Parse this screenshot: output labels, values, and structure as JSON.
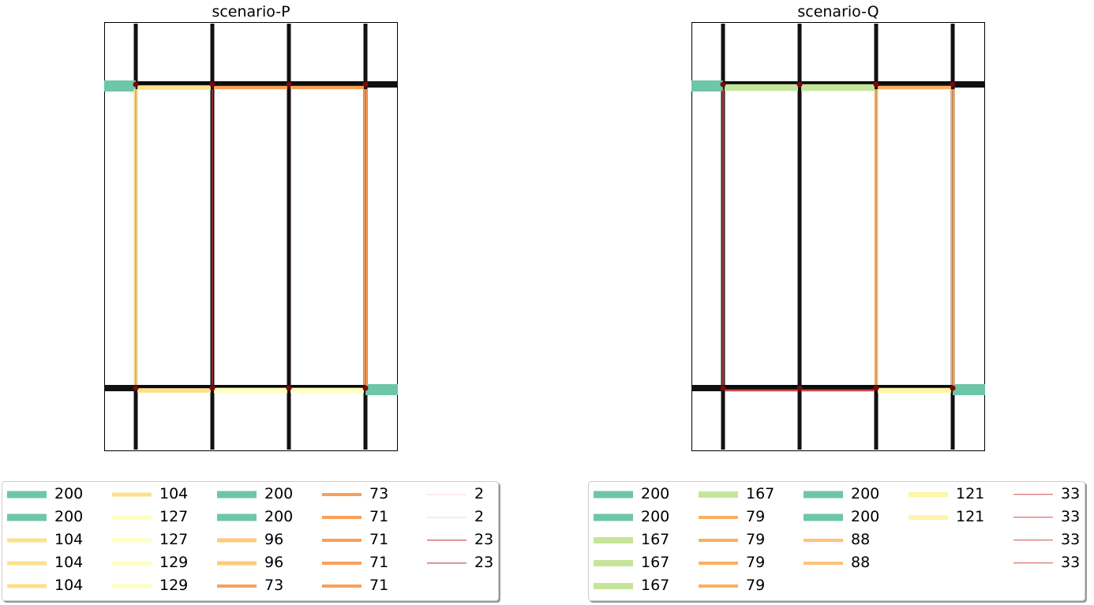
{
  "panels": [
    {
      "title": "scenario-P",
      "edges": [
        {
          "road": "top",
          "from": 0,
          "to": 1,
          "flow": 104,
          "color": "#fee08b"
        },
        {
          "road": "top",
          "from": 1,
          "to": 2,
          "flow": 73,
          "color": "#f8a05a"
        },
        {
          "road": "top",
          "from": 2,
          "to": 3,
          "flow": 73,
          "color": "#f8a05a"
        },
        {
          "road": "bottom",
          "from": 0,
          "to": 1,
          "flow": 104,
          "color": "#fee08b"
        },
        {
          "road": "bottom",
          "from": 1,
          "to": 2,
          "flow": 127,
          "color": "#ffffbf"
        },
        {
          "road": "bottom",
          "from": 2,
          "to": 3,
          "flow": 129,
          "color": "#ffffbf"
        },
        {
          "road": "vertical",
          "at": 0,
          "flow": 104,
          "color": "#fee08b"
        },
        {
          "road": "vertical",
          "at": 1,
          "flow": 23,
          "color": "#b8303a"
        },
        {
          "road": "vertical",
          "at": 2,
          "flow": 2,
          "color": "#2c0f1a"
        },
        {
          "road": "vertical",
          "at": 3,
          "flow": 71,
          "color": "#f8a05a"
        }
      ],
      "entries": [
        {
          "road": "top-left",
          "flow": 200,
          "color": "#6dc6a6"
        },
        {
          "road": "bottom-right",
          "flow": 200,
          "color": "#6dc6a6"
        }
      ],
      "legend": {
        "columns": [
          [
            {
              "label": "200",
              "color": "#6dc6a6",
              "width": 9
            },
            {
              "label": "200",
              "color": "#6dc6a6",
              "width": 9
            },
            {
              "label": "104",
              "color": "#fee08b",
              "width": 5
            },
            {
              "label": "104",
              "color": "#fee08b",
              "width": 5
            },
            {
              "label": "104",
              "color": "#fee08b",
              "width": 5
            }
          ],
          [
            {
              "label": "104",
              "color": "#fee08b",
              "width": 5
            },
            {
              "label": "127",
              "color": "#ffffbf",
              "width": 5
            },
            {
              "label": "127",
              "color": "#ffffbf",
              "width": 5
            },
            {
              "label": "129",
              "color": "#ffffbf",
              "width": 5
            },
            {
              "label": "129",
              "color": "#ffffbf",
              "width": 5
            }
          ],
          [
            {
              "label": "200",
              "color": "#6dc6a6",
              "width": 9
            },
            {
              "label": "200",
              "color": "#6dc6a6",
              "width": 9
            },
            {
              "label": "96",
              "color": "#fdcb7a",
              "width": 5
            },
            {
              "label": "96",
              "color": "#fdcb7a",
              "width": 5
            },
            {
              "label": "73",
              "color": "#f8a05a",
              "width": 4
            }
          ],
          [
            {
              "label": "73",
              "color": "#f8a05a",
              "width": 4
            },
            {
              "label": "71",
              "color": "#f8a05a",
              "width": 4
            },
            {
              "label": "71",
              "color": "#f8a05a",
              "width": 4
            },
            {
              "label": "71",
              "color": "#f8a05a",
              "width": 4
            },
            {
              "label": "71",
              "color": "#f8a05a",
              "width": 4
            }
          ],
          [
            {
              "label": "2",
              "color": "#f7d5dc",
              "width": 1
            },
            {
              "label": "2",
              "color": "#f7d5dc",
              "width": 1
            },
            {
              "label": "23",
              "color": "#b8303a",
              "width": 1.2
            },
            {
              "label": "23",
              "color": "#b8303a",
              "width": 1.2
            }
          ]
        ]
      }
    },
    {
      "title": "scenario-Q",
      "edges": [
        {
          "road": "top",
          "from": 0,
          "to": 1,
          "flow": 167,
          "color": "#c5e59a"
        },
        {
          "road": "top",
          "from": 1,
          "to": 2,
          "flow": 167,
          "color": "#c5e59a"
        },
        {
          "road": "top",
          "from": 2,
          "to": 3,
          "flow": 79,
          "color": "#fcaf5e"
        },
        {
          "road": "bottom",
          "from": 0,
          "to": 1,
          "flow": 33,
          "color": "#d24d4d"
        },
        {
          "road": "bottom",
          "from": 1,
          "to": 2,
          "flow": 33,
          "color": "#d24d4d"
        },
        {
          "road": "bottom",
          "from": 2,
          "to": 3,
          "flow": 121,
          "color": "#fef6a6"
        },
        {
          "road": "vertical",
          "at": 0,
          "flow": 33,
          "color": "#d24d4d"
        },
        {
          "road": "vertical",
          "at": 1,
          "flow": 0,
          "color": "#111111"
        },
        {
          "road": "vertical",
          "at": 2,
          "flow": 88,
          "color": "#fdc27a"
        },
        {
          "road": "vertical",
          "at": 3,
          "flow": 79,
          "color": "#fcaf5e"
        }
      ],
      "entries": [
        {
          "road": "top-left",
          "flow": 200,
          "color": "#6dc6a6"
        },
        {
          "road": "bottom-right",
          "flow": 200,
          "color": "#6dc6a6"
        }
      ],
      "legend": {
        "columns": [
          [
            {
              "label": "200",
              "color": "#6dc6a6",
              "width": 9
            },
            {
              "label": "200",
              "color": "#6dc6a6",
              "width": 9
            },
            {
              "label": "167",
              "color": "#c5e59a",
              "width": 8
            },
            {
              "label": "167",
              "color": "#c5e59a",
              "width": 8
            },
            {
              "label": "167",
              "color": "#c5e59a",
              "width": 8
            }
          ],
          [
            {
              "label": "167",
              "color": "#c5e59a",
              "width": 8
            },
            {
              "label": "79",
              "color": "#fcaf5e",
              "width": 4
            },
            {
              "label": "79",
              "color": "#fcaf5e",
              "width": 4
            },
            {
              "label": "79",
              "color": "#fcaf5e",
              "width": 4
            },
            {
              "label": "79",
              "color": "#fcaf5e",
              "width": 4
            }
          ],
          [
            {
              "label": "200",
              "color": "#6dc6a6",
              "width": 9
            },
            {
              "label": "200",
              "color": "#6dc6a6",
              "width": 9
            },
            {
              "label": "88",
              "color": "#fdc27a",
              "width": 4
            },
            {
              "label": "88",
              "color": "#fdc27a",
              "width": 4
            }
          ],
          [
            {
              "label": "121",
              "color": "#fef6a6",
              "width": 6
            },
            {
              "label": "121",
              "color": "#fef6a6",
              "width": 6
            }
          ],
          [
            {
              "label": "33",
              "color": "#d24d4d",
              "width": 1.5
            },
            {
              "label": "33",
              "color": "#d24d4d",
              "width": 1.5
            },
            {
              "label": "33",
              "color": "#d24d4d",
              "width": 1.5
            },
            {
              "label": "33",
              "color": "#d24d4d",
              "width": 1.5
            }
          ]
        ]
      }
    }
  ]
}
